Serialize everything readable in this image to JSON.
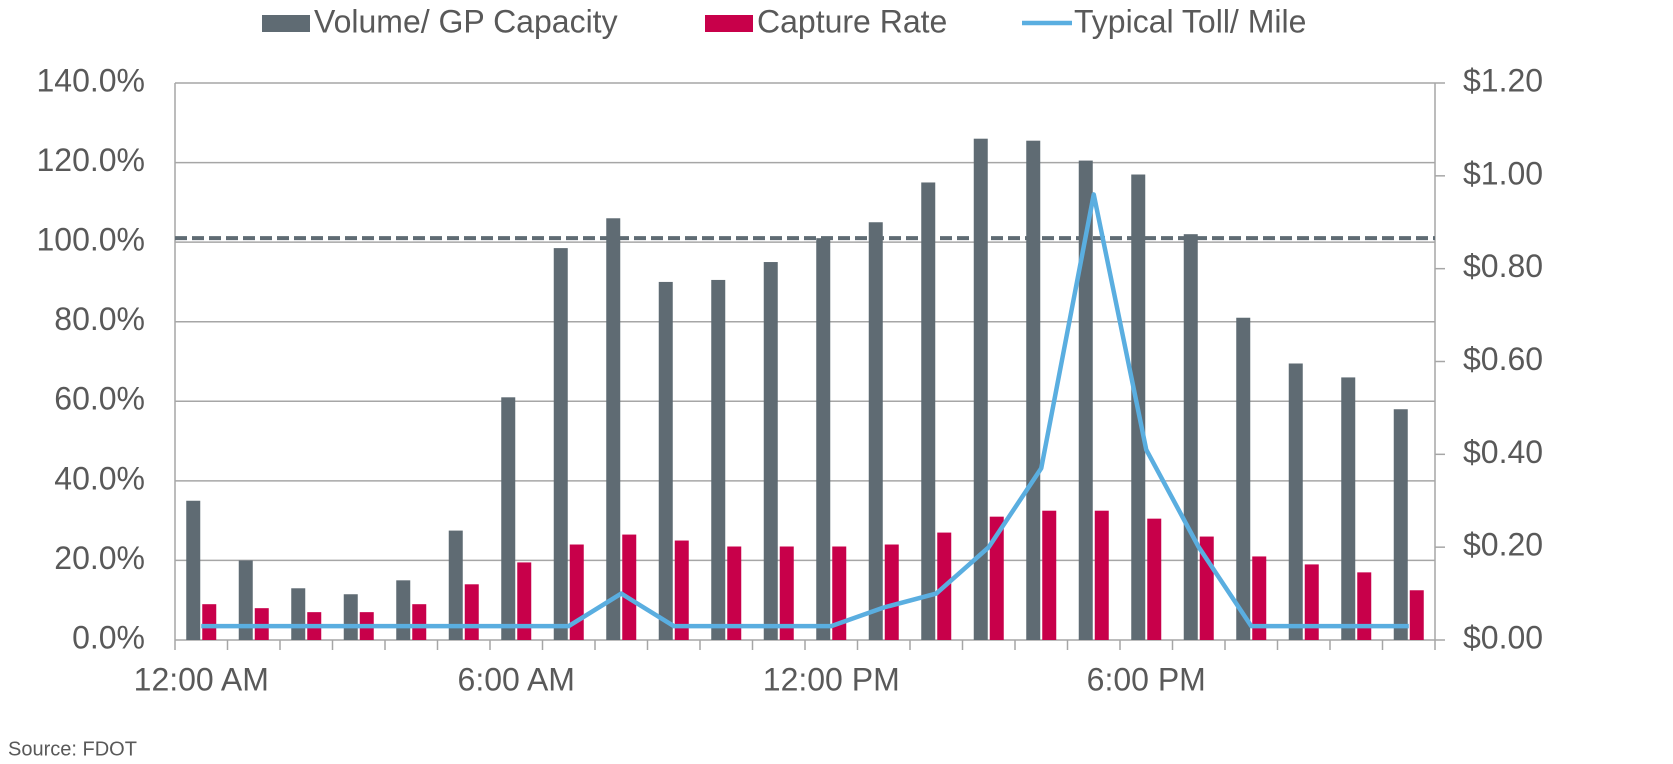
{
  "chart_data": {
    "type": "bar",
    "categories": [
      "12:00 AM",
      null,
      null,
      null,
      null,
      null,
      "6:00 AM",
      null,
      null,
      null,
      null,
      null,
      "12:00 PM",
      null,
      null,
      null,
      null,
      null,
      "6:00 PM",
      null,
      null,
      null,
      null,
      null
    ],
    "series": [
      {
        "name": "Volume/ GP Capacity",
        "type": "bar",
        "color": "#5f6b73",
        "values": [
          35,
          20,
          13,
          11.5,
          15,
          27.5,
          61,
          98.5,
          106,
          90,
          90.5,
          95,
          101,
          105,
          115,
          126,
          125.5,
          120.5,
          117,
          102,
          81,
          69.5,
          66,
          58
        ]
      },
      {
        "name": "Capture Rate",
        "type": "bar",
        "color": "#c8004a",
        "values": [
          9,
          8,
          7,
          7,
          9,
          14,
          19.5,
          24,
          26.5,
          25,
          23.5,
          23.5,
          23.5,
          24,
          27,
          31,
          32.5,
          32.5,
          30.5,
          26,
          21,
          19,
          17,
          12.5
        ]
      },
      {
        "name": "Typical Toll/ Mile",
        "type": "line",
        "axis": "y2",
        "color": "#5aaee0",
        "values": [
          0.03,
          0.03,
          0.03,
          0.03,
          0.03,
          0.03,
          0.03,
          0.03,
          0.1,
          0.03,
          0.03,
          0.03,
          0.03,
          0.07,
          0.1,
          0.2,
          0.37,
          0.96,
          0.41,
          0.2,
          0.03,
          0.03,
          0.03,
          0.03
        ]
      }
    ],
    "ylim": [
      0,
      140
    ],
    "yticks": [
      {
        "value": 0,
        "label": "0.0%"
      },
      {
        "value": 20,
        "label": "20.0%"
      },
      {
        "value": 40,
        "label": "40.0%"
      },
      {
        "value": 60,
        "label": "60.0%"
      },
      {
        "value": 80,
        "label": "80.0%"
      },
      {
        "value": 100,
        "label": "100.0%"
      },
      {
        "value": 120,
        "label": "120.0%"
      },
      {
        "value": 140,
        "label": "140.0%"
      }
    ],
    "y2lim": [
      0,
      1.2
    ],
    "y2ticks": [
      {
        "value": 0,
        "label": "$0.00"
      },
      {
        "value": 0.2,
        "label": "$0.20"
      },
      {
        "value": 0.4,
        "label": "$0.40"
      },
      {
        "value": 0.6,
        "label": "$0.60"
      },
      {
        "value": 0.8,
        "label": "$0.80"
      },
      {
        "value": 1.0,
        "label": "$1.00"
      },
      {
        "value": 1.2,
        "label": "$1.20"
      }
    ],
    "reference_line": 101,
    "grid": true,
    "legend": "top",
    "source": "Source: FDOT"
  }
}
